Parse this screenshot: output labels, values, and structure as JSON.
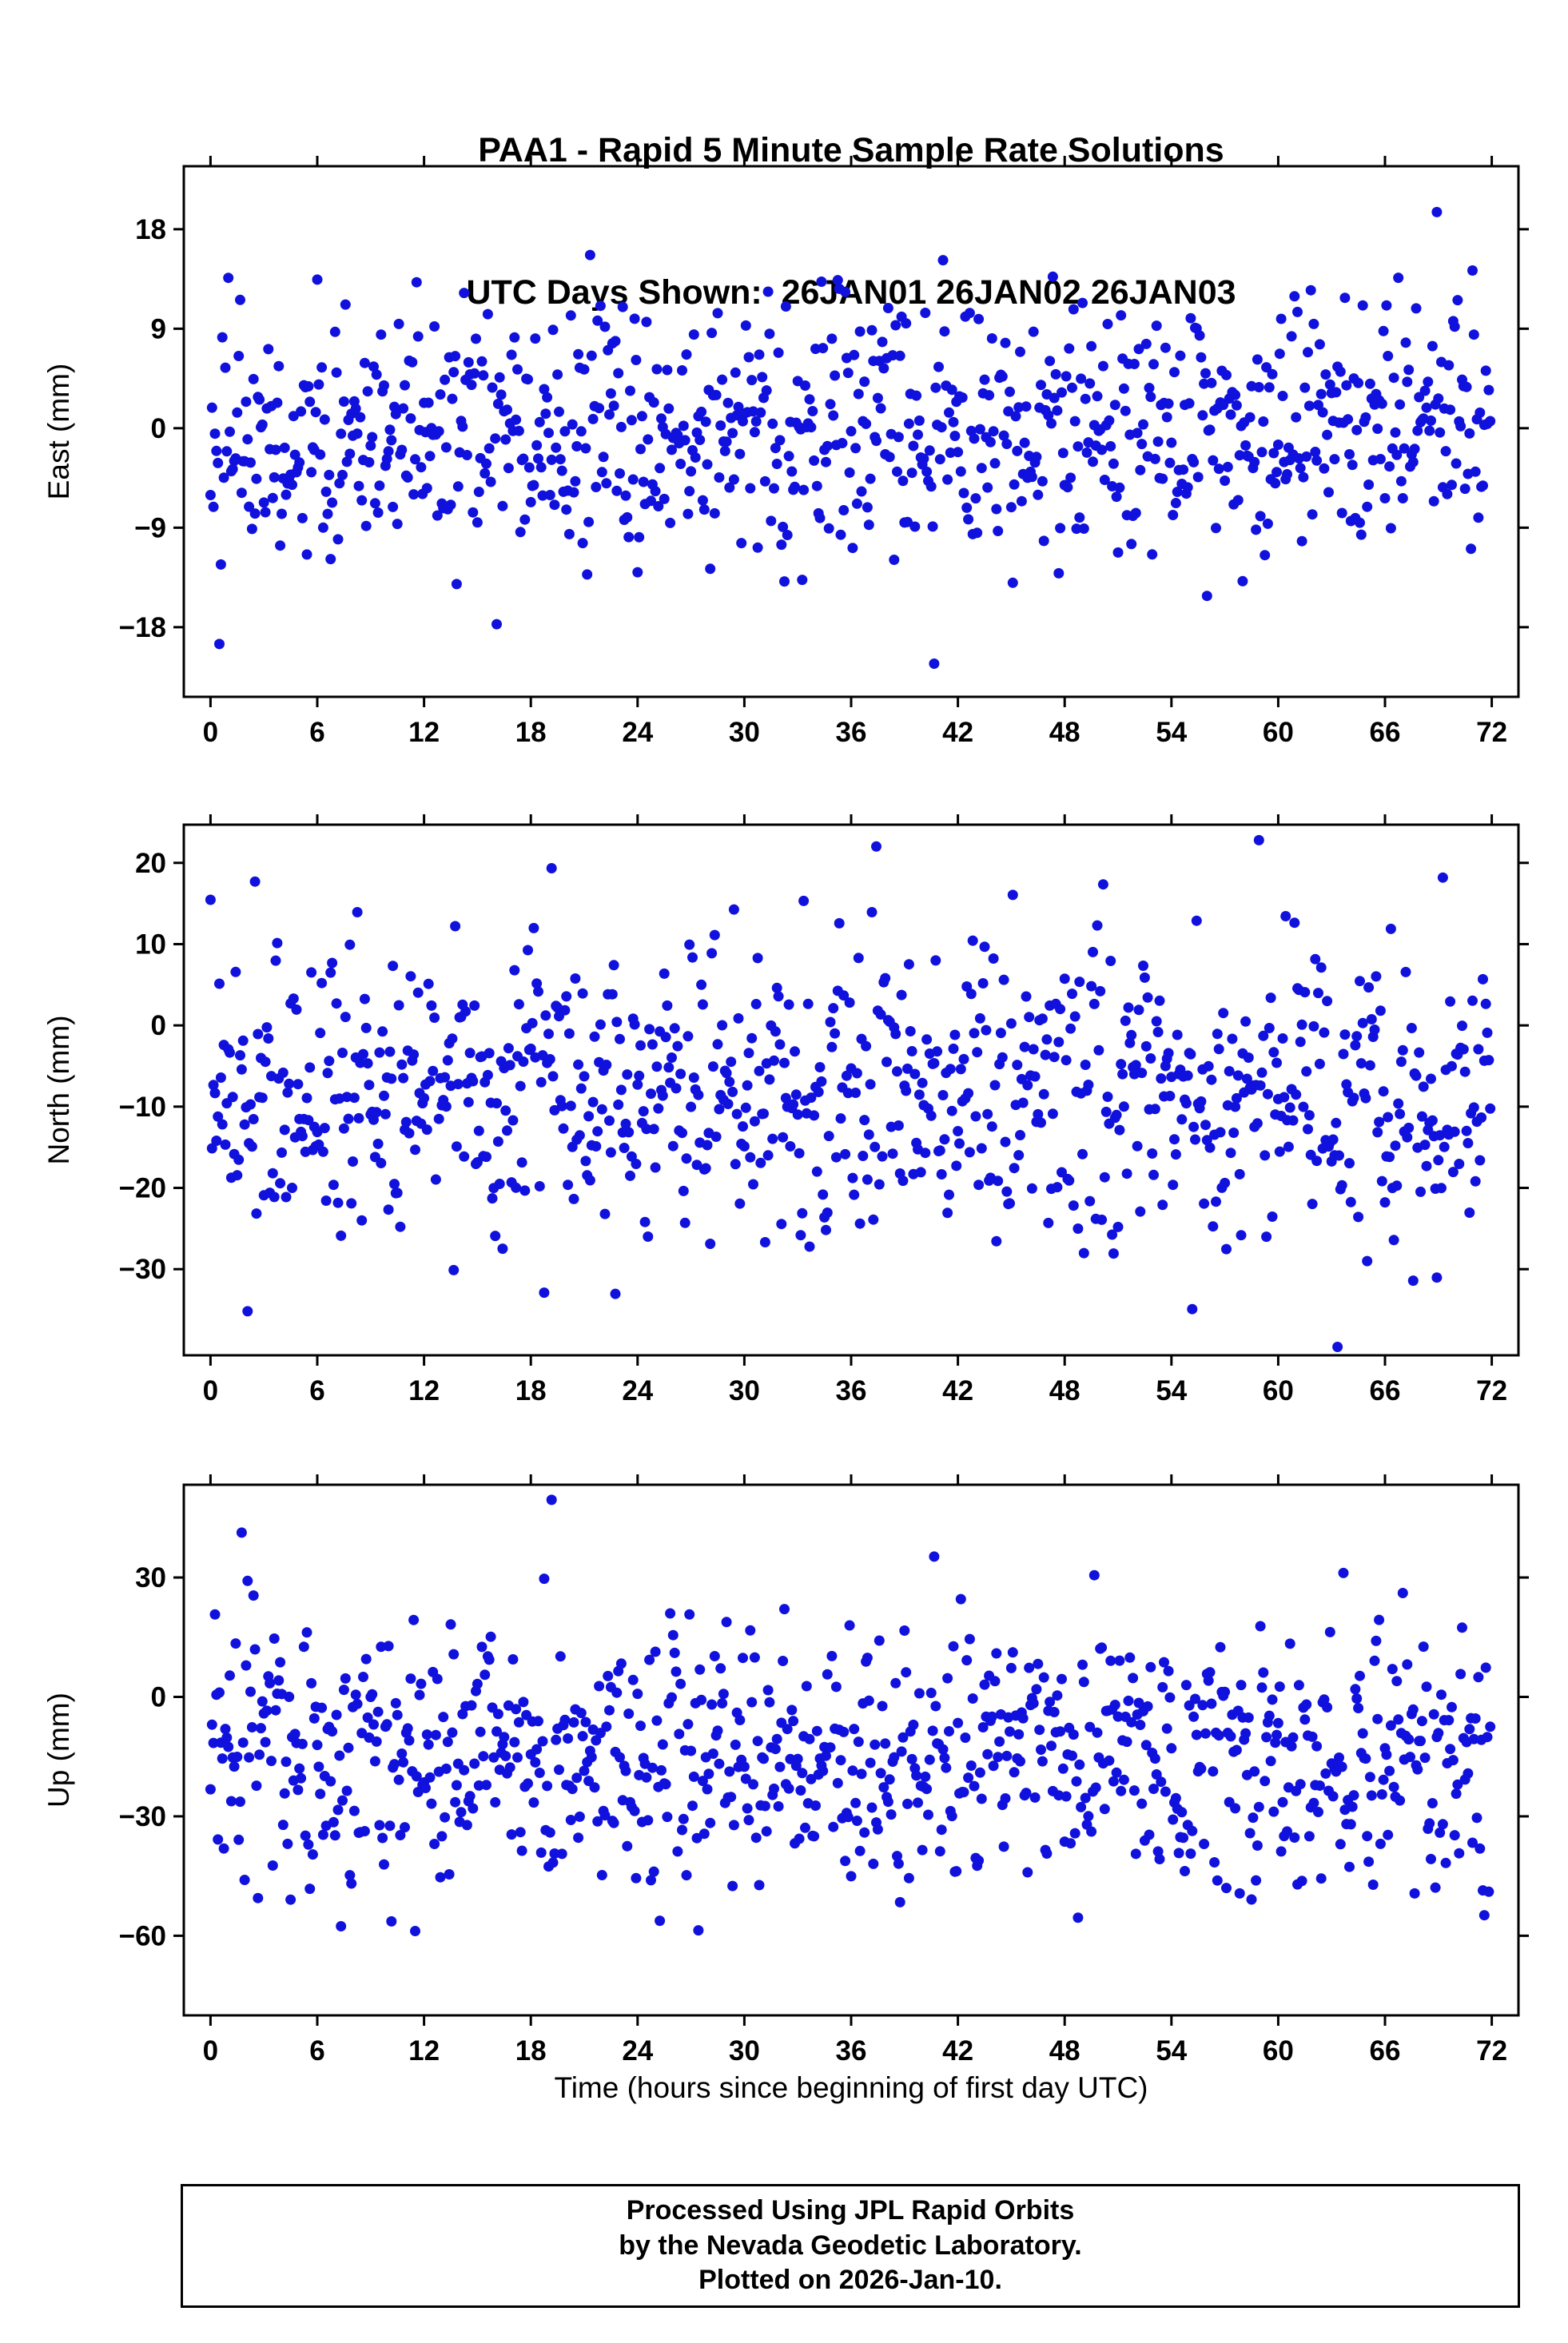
{
  "title": {
    "line1": "PAA1 - Rapid 5 Minute Sample Rate Solutions",
    "line2": "UTC Days Shown:  26JAN01 26JAN02 26JAN03"
  },
  "station": "PAA1",
  "utc_days_shown": [
    "26JAN01",
    "26JAN02",
    "26JAN03"
  ],
  "xlabel": "Time (hours since beginning of first day UTC)",
  "footer": {
    "line1": "Processed Using JPL Rapid Orbits",
    "line2": "by the Nevada Geodetic Laboratory.",
    "line3": "Plotted on 2026-Jan-10."
  },
  "style": {
    "marker_color": "#1111dd",
    "axis_color": "#000000",
    "marker_radius": 6.5,
    "frame_stroke_width": 3,
    "tick_length": 13
  },
  "chart_data": [
    {
      "type": "scatter",
      "ylabel": "East (mm)",
      "ylim": [
        -24.3,
        23.7
      ],
      "yticks": [
        -18,
        -9,
        0,
        9,
        18
      ],
      "xlim": [
        -1.5,
        73.5
      ],
      "xticks": [
        0,
        6,
        12,
        18,
        24,
        30,
        36,
        42,
        48,
        54,
        60,
        66,
        72
      ],
      "sample_interval_minutes": 5,
      "points_spec": {
        "seed": 42,
        "n": 864,
        "x_start": 0,
        "x_step_hours": 0.0833333,
        "mean": -0.5,
        "std": 5.8,
        "outlier_frac": 0.025,
        "outlier_scale": 2.4
      }
    },
    {
      "type": "scatter",
      "ylabel": "North (mm)",
      "ylim": [
        -40.6,
        24.7
      ],
      "yticks": [
        -30,
        -20,
        -10,
        0,
        10,
        20
      ],
      "xlim": [
        -1.5,
        73.5
      ],
      "xticks": [
        0,
        6,
        12,
        18,
        24,
        30,
        36,
        42,
        48,
        54,
        60,
        66,
        72
      ],
      "sample_interval_minutes": 5,
      "points_spec": {
        "seed": 7,
        "n": 864,
        "x_start": 0,
        "x_step_hours": 0.0833333,
        "mean": -8,
        "std": 8.5,
        "outlier_frac": 0.03,
        "outlier_scale": 2.2
      }
    },
    {
      "type": "scatter",
      "ylabel": "Up (mm)",
      "ylim": [
        -80,
        53.3
      ],
      "yticks": [
        -60,
        -30,
        0,
        30
      ],
      "xlim": [
        -1.5,
        73.5
      ],
      "xticks": [
        0,
        6,
        12,
        18,
        24,
        30,
        36,
        42,
        48,
        54,
        60,
        66,
        72
      ],
      "sample_interval_minutes": 5,
      "points_spec": {
        "seed": 2026,
        "n": 864,
        "x_start": 0,
        "x_step_hours": 0.0833333,
        "mean": -16,
        "std": 16,
        "outlier_frac": 0.025,
        "outlier_scale": 2.2
      }
    }
  ]
}
